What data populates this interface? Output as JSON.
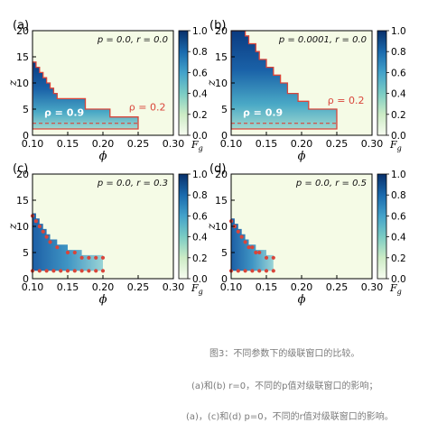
{
  "chart_data": [
    {
      "type": "heatmap",
      "panel_label": "(a)",
      "param_text": "p = 0.0, r = 0.0",
      "xlabel": "ϕ",
      "ylabel": "z",
      "xlim": [
        0.1,
        0.3
      ],
      "ylim": [
        0,
        20
      ],
      "xticks": [
        "0.10",
        "0.15",
        "0.20",
        "0.25",
        "0.30"
      ],
      "yticks": [
        "0",
        "5",
        "10",
        "15",
        "20"
      ],
      "colorbar_label": "F",
      "colorbar_sub": "g",
      "colorbar_ticks": [
        "0.0",
        "0.2",
        "0.4",
        "0.6",
        "0.8",
        "1.0"
      ],
      "annotations": [
        {
          "text": "ρ = 0.9",
          "x": 0.145,
          "y": 3.7
        },
        {
          "text": "ρ = 0.2",
          "x": 0.263,
          "y": 4.7
        }
      ],
      "boundary_style": "line",
      "boundary": [
        [
          0.1,
          14
        ],
        [
          0.105,
          14
        ],
        [
          0.105,
          13
        ],
        [
          0.11,
          13
        ],
        [
          0.11,
          12
        ],
        [
          0.115,
          12
        ],
        [
          0.115,
          11
        ],
        [
          0.12,
          11
        ],
        [
          0.12,
          10
        ],
        [
          0.125,
          10
        ],
        [
          0.125,
          9
        ],
        [
          0.13,
          9
        ],
        [
          0.13,
          8
        ],
        [
          0.135,
          8
        ],
        [
          0.135,
          7
        ],
        [
          0.175,
          7
        ],
        [
          0.175,
          5
        ],
        [
          0.21,
          5
        ],
        [
          0.21,
          3.5
        ],
        [
          0.25,
          3.5
        ],
        [
          0.25,
          1.2
        ],
        [
          0.1,
          1.2
        ]
      ],
      "dashed_y": 2.3
    },
    {
      "type": "heatmap",
      "panel_label": "(b)",
      "param_text": "p = 0.0001, r = 0.0",
      "xlabel": "ϕ",
      "ylabel": "z",
      "xlim": [
        0.1,
        0.3
      ],
      "ylim": [
        0,
        20
      ],
      "xticks": [
        "0.10",
        "0.15",
        "0.20",
        "0.25",
        "0.30"
      ],
      "yticks": [
        "0",
        "5",
        "10",
        "15",
        "20"
      ],
      "colorbar_label": "F",
      "colorbar_sub": "g",
      "colorbar_ticks": [
        "0.0",
        "0.2",
        "0.4",
        "0.6",
        "0.8",
        "1.0"
      ],
      "annotations": [
        {
          "text": "ρ = 0.9",
          "x": 0.145,
          "y": 3.7
        },
        {
          "text": "ρ = 0.2",
          "x": 0.263,
          "y": 6.0
        }
      ],
      "boundary_style": "line",
      "boundary": [
        [
          0.1,
          20
        ],
        [
          0.12,
          20
        ],
        [
          0.12,
          19
        ],
        [
          0.125,
          19
        ],
        [
          0.125,
          17.5
        ],
        [
          0.135,
          17.5
        ],
        [
          0.135,
          16
        ],
        [
          0.14,
          16
        ],
        [
          0.14,
          14.5
        ],
        [
          0.15,
          14.5
        ],
        [
          0.15,
          13
        ],
        [
          0.16,
          13
        ],
        [
          0.16,
          11.5
        ],
        [
          0.17,
          11.5
        ],
        [
          0.17,
          10
        ],
        [
          0.18,
          10
        ],
        [
          0.18,
          8
        ],
        [
          0.195,
          8
        ],
        [
          0.195,
          6.5
        ],
        [
          0.21,
          6.5
        ],
        [
          0.21,
          5
        ],
        [
          0.25,
          5
        ],
        [
          0.25,
          1.2
        ],
        [
          0.1,
          1.2
        ]
      ],
      "dashed_y": 2.3
    },
    {
      "type": "heatmap",
      "panel_label": "(c)",
      "param_text": "p = 0.0, r = 0.3",
      "xlabel": "ϕ",
      "ylabel": "z",
      "xlim": [
        0.1,
        0.3
      ],
      "ylim": [
        0,
        20
      ],
      "xticks": [
        "0.10",
        "0.15",
        "0.20",
        "0.25",
        "0.30"
      ],
      "yticks": [
        "0",
        "5",
        "10",
        "15",
        "20"
      ],
      "colorbar_label": "F",
      "colorbar_sub": "g",
      "colorbar_ticks": [
        "0.0",
        "0.2",
        "0.4",
        "0.6",
        "0.8",
        "1.0"
      ],
      "annotations": [],
      "boundary_style": "dots",
      "boundary": [
        [
          0.1,
          12
        ],
        [
          0.105,
          11
        ],
        [
          0.11,
          10
        ],
        [
          0.115,
          9
        ],
        [
          0.12,
          8
        ],
        [
          0.125,
          7
        ],
        [
          0.135,
          6
        ],
        [
          0.15,
          5
        ],
        [
          0.16,
          5
        ],
        [
          0.17,
          4
        ],
        [
          0.18,
          4
        ],
        [
          0.19,
          4
        ],
        [
          0.2,
          4
        ]
      ],
      "bottom_dots_y": 1.5,
      "region_xmax": 0.2
    },
    {
      "type": "heatmap",
      "panel_label": "(d)",
      "param_text": "p = 0.0, r = 0.5",
      "xlabel": "ϕ",
      "ylabel": "z",
      "xlim": [
        0.1,
        0.3
      ],
      "ylim": [
        0,
        20
      ],
      "xticks": [
        "0.10",
        "0.15",
        "0.20",
        "0.25",
        "0.30"
      ],
      "yticks": [
        "0",
        "5",
        "10",
        "15",
        "20"
      ],
      "colorbar_label": "F",
      "colorbar_sub": "g",
      "colorbar_ticks": [
        "0.0",
        "0.2",
        "0.4",
        "0.6",
        "0.8",
        "1.0"
      ],
      "annotations": [],
      "boundary_style": "dots",
      "boundary": [
        [
          0.1,
          11
        ],
        [
          0.105,
          10
        ],
        [
          0.11,
          9
        ],
        [
          0.115,
          8
        ],
        [
          0.12,
          7
        ],
        [
          0.125,
          6
        ],
        [
          0.13,
          6
        ],
        [
          0.135,
          5
        ],
        [
          0.14,
          5
        ],
        [
          0.15,
          4
        ],
        [
          0.16,
          4
        ]
      ],
      "bottom_dots_y": 1.5,
      "region_xmax": 0.16
    }
  ],
  "colors": {
    "boundary": "#d9453a",
    "background": "#f5fbe6",
    "dark_blue": "#0b3e86",
    "teal": "#4db1b9",
    "light_teal": "#b2e0cf"
  },
  "caption": {
    "title": "图3：不同参数下的级联窗口的比较。",
    "line1": "(a)和(b) r=0，不同的p值对级联窗口的影响；",
    "line2": "(a)，(c)和(d) p=0，不同的r值对级联窗口的影响。"
  }
}
